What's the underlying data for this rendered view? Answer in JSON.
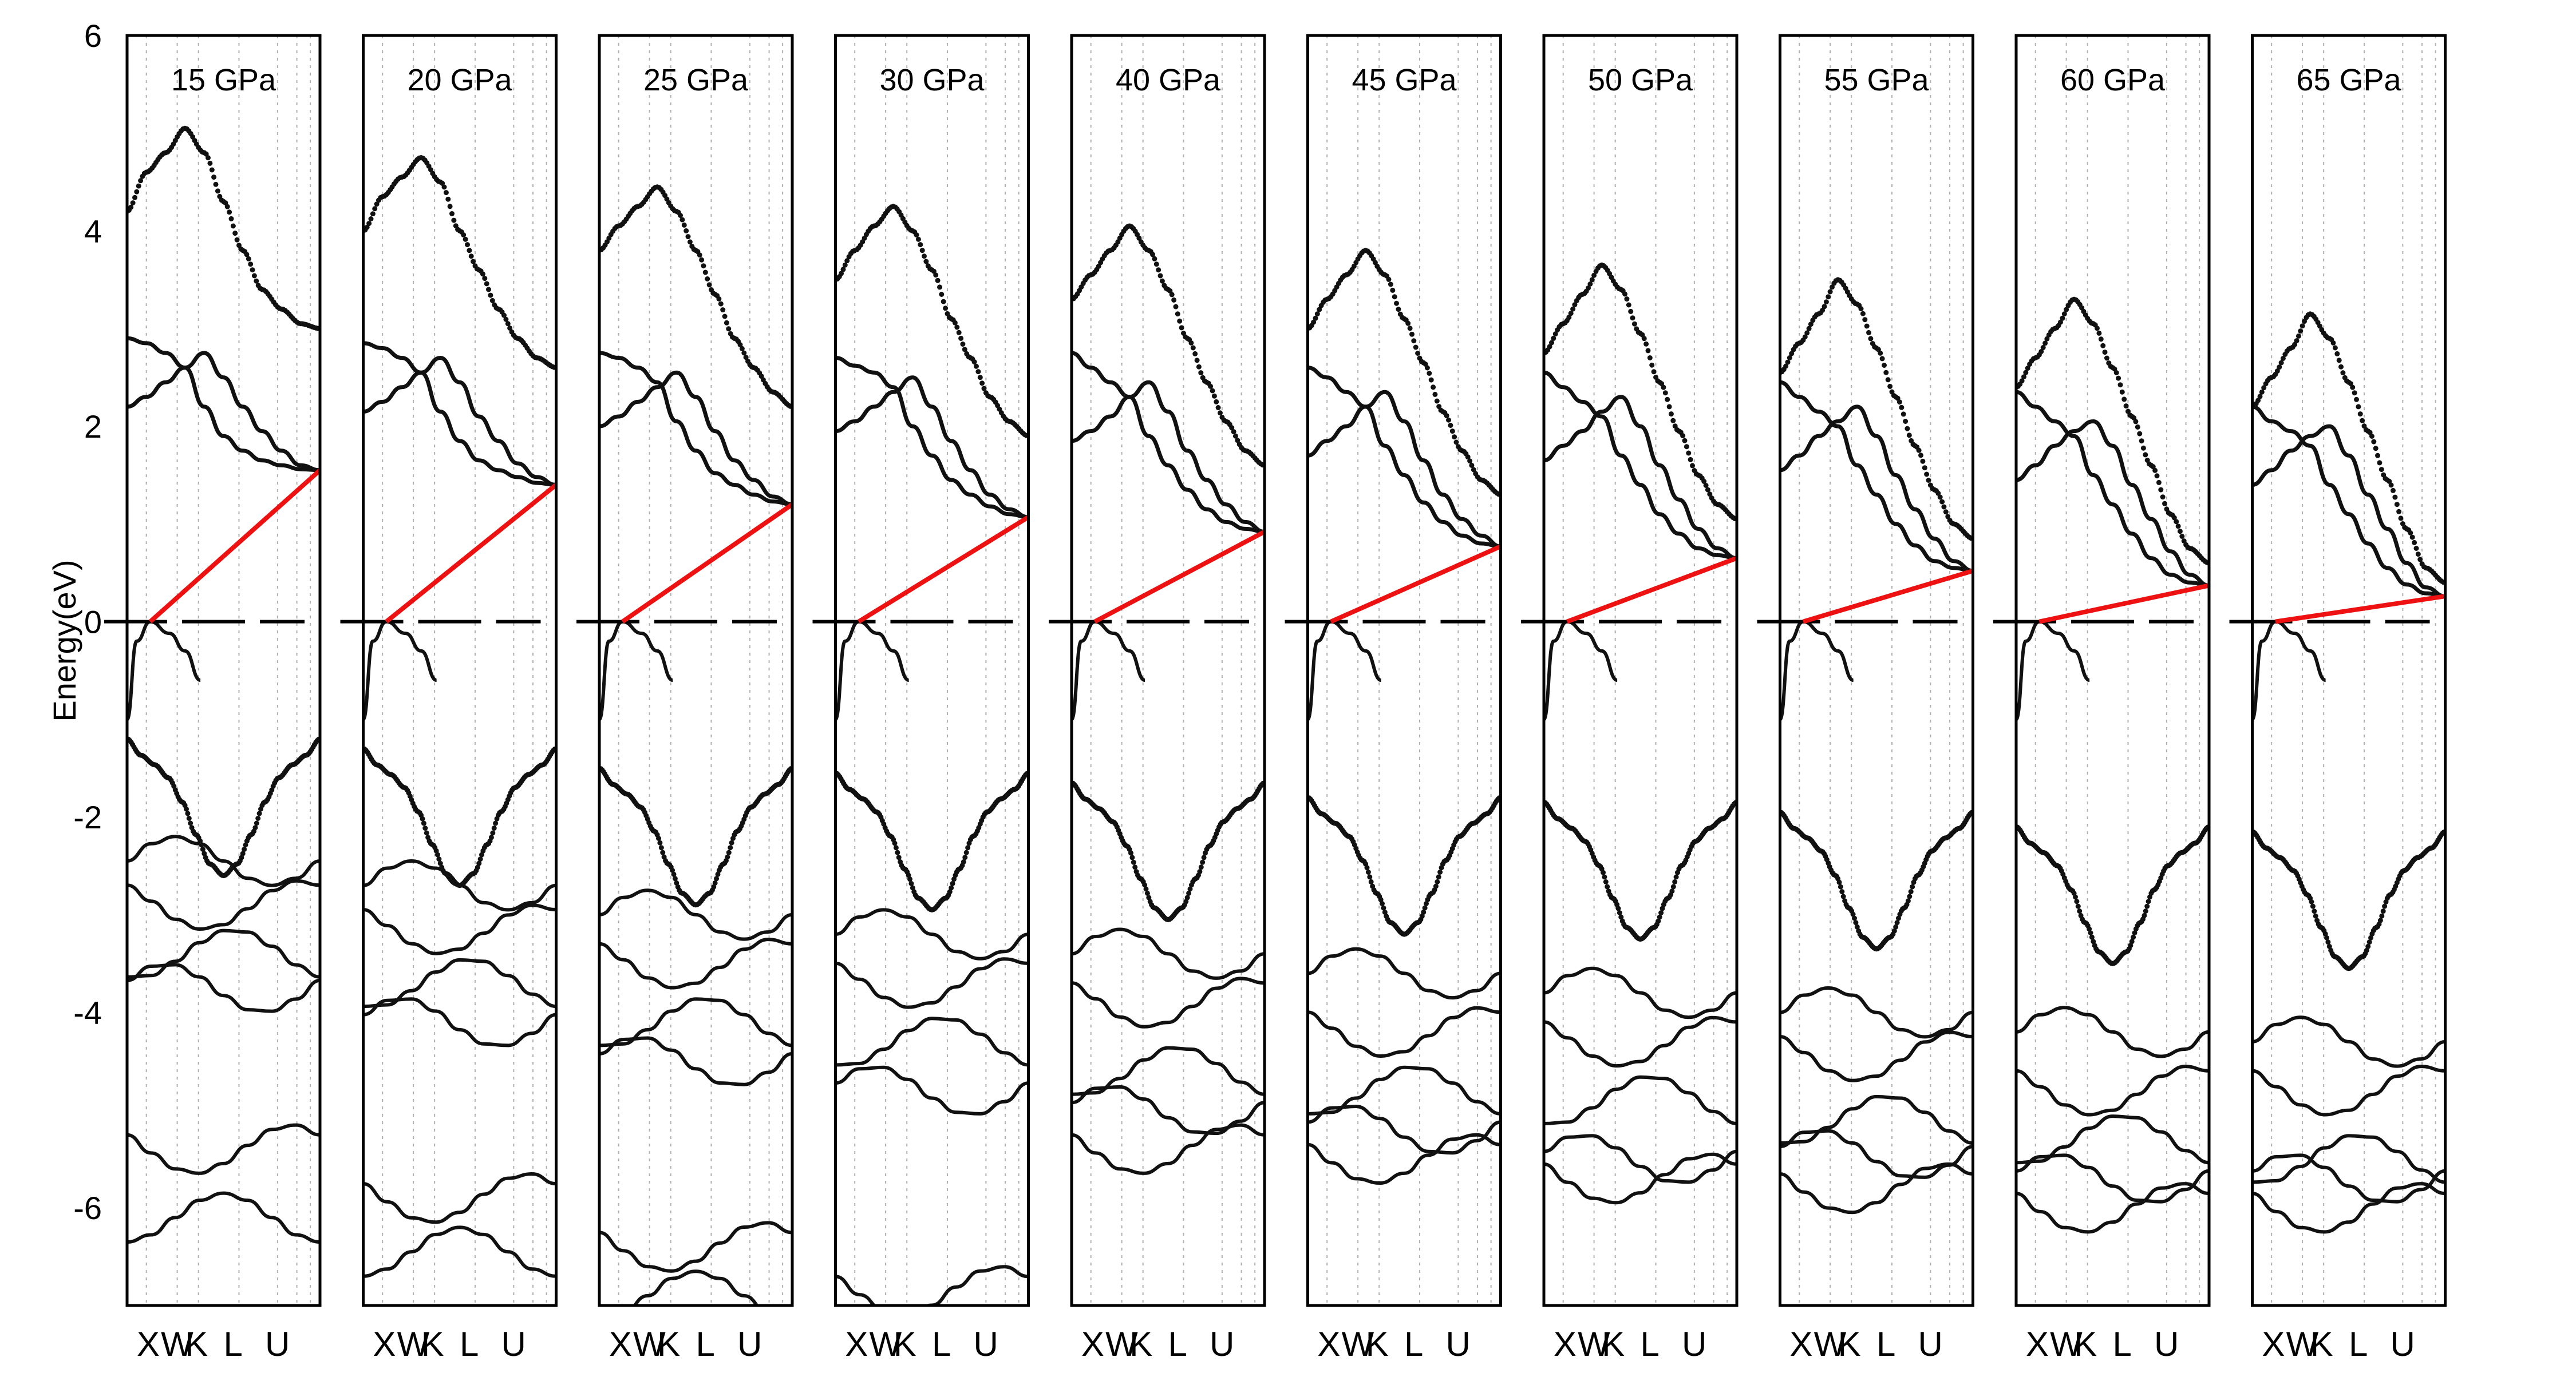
{
  "chart_data": {
    "type": "line",
    "title": "",
    "ylabel": "Energy(eV)",
    "ylim": [
      -7,
      6
    ],
    "yticks": [
      6,
      4,
      2,
      0,
      -2,
      -4,
      -6
    ],
    "k_path_labels": [
      "X",
      "W",
      "K",
      "L",
      "U"
    ],
    "fermi_level": 0,
    "grid": "vertical dotted lines at k-points",
    "colors": {
      "bands": "#111111",
      "gap_line": "#ee1111",
      "frame": "#000000",
      "grid": "#b0b0b0"
    },
    "panels": [
      {
        "label": "15 GPa",
        "vbm": 0,
        "cbm": 1.55,
        "cb1": [
          2.2,
          2.3,
          2.45,
          2.6,
          2.75,
          2.5,
          2.2,
          1.95,
          1.75,
          1.6,
          1.55
        ],
        "cb2": [
          2.9,
          2.85,
          2.75,
          2.6,
          2.2,
          1.9,
          1.75,
          1.65,
          1.6,
          1.56,
          1.55
        ],
        "cb3": [
          4.2,
          4.6,
          4.8,
          5.05,
          4.8,
          4.3,
          3.8,
          3.4,
          3.2,
          3.05,
          3.0
        ],
        "vb2": -1.2,
        "deep_bands": [
          -2.45,
          -2.9,
          -3.4,
          -3.75,
          -5.4,
          -6.1
        ]
      },
      {
        "label": "20 GPa",
        "vbm": 0,
        "cbm": 1.4,
        "cb1": [
          2.15,
          2.25,
          2.4,
          2.55,
          2.7,
          2.45,
          2.1,
          1.85,
          1.62,
          1.48,
          1.4
        ],
        "cb2": [
          2.85,
          2.8,
          2.7,
          2.55,
          2.15,
          1.85,
          1.65,
          1.55,
          1.48,
          1.42,
          1.4
        ],
        "cb3": [
          4.0,
          4.35,
          4.55,
          4.75,
          4.5,
          4.0,
          3.6,
          3.2,
          2.9,
          2.7,
          2.6
        ],
        "vb2": -1.3,
        "deep_bands": [
          -2.7,
          -3.15,
          -3.7,
          -4.1,
          -5.9,
          -6.45
        ]
      },
      {
        "label": "25 GPa",
        "vbm": 0,
        "cbm": 1.2,
        "cb1": [
          2.0,
          2.1,
          2.25,
          2.4,
          2.55,
          2.3,
          1.95,
          1.65,
          1.45,
          1.28,
          1.2
        ],
        "cb2": [
          2.75,
          2.7,
          2.6,
          2.45,
          2.05,
          1.75,
          1.52,
          1.4,
          1.3,
          1.23,
          1.2
        ],
        "cb3": [
          3.8,
          4.05,
          4.25,
          4.45,
          4.2,
          3.8,
          3.35,
          2.9,
          2.6,
          2.35,
          2.2
        ],
        "vb2": -1.5,
        "deep_bands": [
          -3.0,
          -3.5,
          -4.1,
          -4.5,
          -6.4,
          -6.9
        ]
      },
      {
        "label": "30 GPa",
        "vbm": 0,
        "cbm": 1.07,
        "cb1": [
          1.95,
          2.05,
          2.2,
          2.35,
          2.5,
          2.2,
          1.85,
          1.55,
          1.3,
          1.15,
          1.07
        ],
        "cb2": [
          2.7,
          2.62,
          2.55,
          2.4,
          2.0,
          1.7,
          1.45,
          1.3,
          1.18,
          1.1,
          1.07
        ],
        "cb3": [
          3.5,
          3.8,
          4.05,
          4.25,
          4.0,
          3.6,
          3.1,
          2.7,
          2.3,
          2.05,
          1.9
        ],
        "vb2": -1.55,
        "deep_bands": [
          -3.2,
          -3.7,
          -4.3,
          -4.8,
          -6.85
        ]
      },
      {
        "label": "40 GPa",
        "vbm": 0,
        "cbm": 0.92,
        "cb1": [
          1.85,
          1.95,
          2.1,
          2.3,
          2.45,
          2.15,
          1.75,
          1.45,
          1.2,
          1.02,
          0.92
        ],
        "cb2": [
          2.75,
          2.6,
          2.45,
          2.3,
          1.9,
          1.6,
          1.35,
          1.15,
          1.02,
          0.95,
          0.92
        ],
        "cb3": [
          3.3,
          3.55,
          3.8,
          4.05,
          3.8,
          3.4,
          2.9,
          2.45,
          2.05,
          1.75,
          1.6
        ],
        "vb2": -1.65,
        "deep_bands": [
          -3.4,
          -3.9,
          -4.6,
          -5.0,
          -5.4
        ]
      },
      {
        "label": "45 GPa",
        "vbm": 0,
        "cbm": 0.77,
        "cb1": [
          1.7,
          1.85,
          2.0,
          2.2,
          2.35,
          2.05,
          1.65,
          1.3,
          1.05,
          0.88,
          0.77
        ],
        "cb2": [
          2.6,
          2.5,
          2.35,
          2.2,
          1.8,
          1.5,
          1.22,
          1.02,
          0.88,
          0.8,
          0.77
        ],
        "cb3": [
          3.0,
          3.3,
          3.55,
          3.8,
          3.55,
          3.1,
          2.65,
          2.15,
          1.75,
          1.45,
          1.3
        ],
        "vb2": -1.8,
        "deep_bands": [
          -3.6,
          -4.2,
          -4.8,
          -5.2,
          -5.5
        ]
      },
      {
        "label": "50 GPa",
        "vbm": 0,
        "cbm": 0.65,
        "cb1": [
          1.65,
          1.8,
          1.95,
          2.15,
          2.3,
          2.0,
          1.6,
          1.25,
          0.95,
          0.75,
          0.65
        ],
        "cb2": [
          2.55,
          2.4,
          2.25,
          2.1,
          1.7,
          1.4,
          1.1,
          0.9,
          0.75,
          0.68,
          0.65
        ],
        "cb3": [
          2.75,
          3.05,
          3.35,
          3.65,
          3.4,
          2.95,
          2.45,
          1.95,
          1.5,
          1.2,
          1.05
        ],
        "vb2": -1.85,
        "deep_bands": [
          -3.8,
          -4.3,
          -4.9,
          -5.5,
          -5.7
        ]
      },
      {
        "label": "55 GPa",
        "vbm": 0,
        "cbm": 0.52,
        "cb1": [
          1.55,
          1.7,
          1.9,
          2.05,
          2.2,
          1.9,
          1.5,
          1.15,
          0.85,
          0.62,
          0.52
        ],
        "cb2": [
          2.45,
          2.3,
          2.15,
          2.0,
          1.6,
          1.3,
          1.0,
          0.78,
          0.62,
          0.55,
          0.52
        ],
        "cb3": [
          2.55,
          2.85,
          3.15,
          3.5,
          3.25,
          2.8,
          2.3,
          1.8,
          1.35,
          1.0,
          0.85
        ],
        "vb2": -1.95,
        "deep_bands": [
          -4.0,
          -4.45,
          -5.1,
          -5.45,
          -5.8
        ]
      },
      {
        "label": "60 GPa",
        "vbm": 0,
        "cbm": 0.37,
        "cb1": [
          1.45,
          1.6,
          1.8,
          1.95,
          2.05,
          1.8,
          1.4,
          1.05,
          0.72,
          0.48,
          0.37
        ],
        "cb2": [
          2.35,
          2.2,
          2.05,
          1.9,
          1.5,
          1.2,
          0.9,
          0.65,
          0.48,
          0.4,
          0.37
        ],
        "cb3": [
          2.4,
          2.7,
          3.0,
          3.3,
          3.05,
          2.6,
          2.1,
          1.6,
          1.1,
          0.75,
          0.6
        ],
        "vb2": -2.1,
        "deep_bands": [
          -4.2,
          -4.8,
          -5.3,
          -5.7,
          -6.0
        ]
      },
      {
        "label": "65 GPa",
        "vbm": 0,
        "cbm": 0.26,
        "cb1": [
          1.4,
          1.55,
          1.75,
          1.9,
          2.0,
          1.7,
          1.3,
          0.95,
          0.6,
          0.35,
          0.26
        ],
        "cb2": [
          2.2,
          2.05,
          1.95,
          1.8,
          1.4,
          1.1,
          0.8,
          0.55,
          0.38,
          0.29,
          0.26
        ],
        "cb3": [
          2.2,
          2.5,
          2.8,
          3.15,
          2.9,
          2.45,
          1.95,
          1.45,
          0.95,
          0.55,
          0.4
        ],
        "vb2": -2.15,
        "deep_bands": [
          -4.3,
          -4.8,
          -5.5,
          -5.7,
          -6.0
        ]
      }
    ]
  }
}
